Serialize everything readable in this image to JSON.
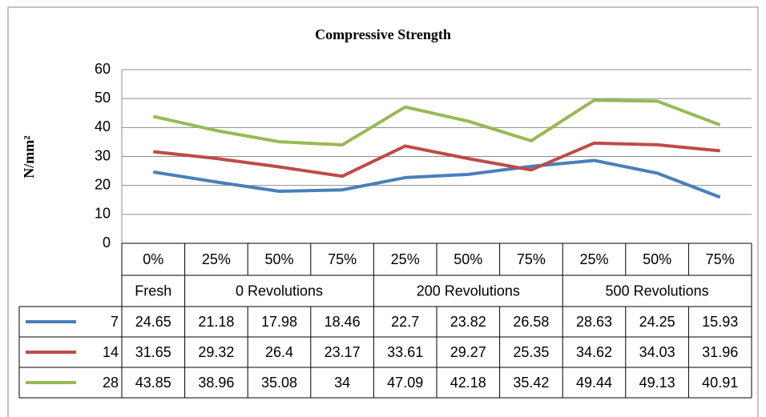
{
  "chart_data": {
    "type": "line",
    "title": "Compressive Strength",
    "y_label": "N/mm²",
    "groups": [
      {
        "name": "Fresh",
        "categories": [
          "0%"
        ]
      },
      {
        "name": "0 Revolutions",
        "categories": [
          "25%",
          "50%",
          "75%"
        ]
      },
      {
        "name": "200 Revolutions",
        "categories": [
          "25%",
          "50%",
          "75%"
        ]
      },
      {
        "name": "500 Revolutions",
        "categories": [
          "25%",
          "50%",
          "75%"
        ]
      }
    ],
    "series": [
      {
        "name": "7",
        "color": "#4a7ebb",
        "values": [
          24.65,
          21.18,
          17.98,
          18.46,
          22.7,
          23.82,
          26.58,
          28.63,
          24.25,
          15.93
        ]
      },
      {
        "name": "14",
        "color": "#be4b48",
        "values": [
          31.65,
          29.32,
          26.4,
          23.17,
          33.61,
          29.27,
          25.35,
          34.62,
          34.03,
          31.96
        ]
      },
      {
        "name": "28",
        "color": "#98b954",
        "values": [
          43.85,
          38.96,
          35.08,
          34,
          47.09,
          42.18,
          35.42,
          49.44,
          49.13,
          40.91
        ]
      }
    ],
    "ylim": [
      0,
      60
    ],
    "yticks": [
      0,
      10,
      20,
      30,
      40,
      50,
      60
    ],
    "grid": true
  }
}
